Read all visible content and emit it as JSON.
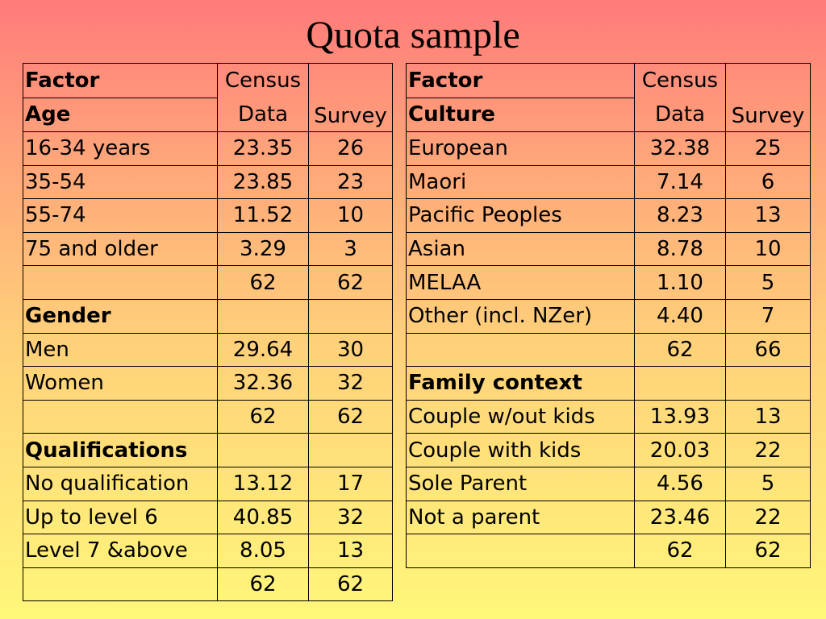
{
  "title": "Quota sample",
  "left_table": {
    "header": {
      "factor": "Factor",
      "section": "Age",
      "census_line1": "Census",
      "census_line2": "Data",
      "survey": "Survey"
    },
    "rows": [
      {
        "label": "16-34 years",
        "census": "23.35",
        "survey": "26",
        "bold": false
      },
      {
        "label": "35-54",
        "census": "23.85",
        "survey": "23",
        "bold": false
      },
      {
        "label": "55-74",
        "census": "11.52",
        "survey": "10",
        "bold": false
      },
      {
        "label": "75 and older",
        "census": "3.29",
        "survey": "3",
        "bold": false
      },
      {
        "label": "",
        "census": "62",
        "survey": "62",
        "bold": false
      },
      {
        "label": "Gender",
        "census": "",
        "survey": "",
        "bold": true
      },
      {
        "label": "Men",
        "census": "29.64",
        "survey": "30",
        "bold": false
      },
      {
        "label": "Women",
        "census": "32.36",
        "survey": "32",
        "bold": false
      },
      {
        "label": "",
        "census": "62",
        "survey": "62",
        "bold": false
      },
      {
        "label": "Qualifications",
        "census": "",
        "survey": "",
        "bold": true
      },
      {
        "label": "No qualification",
        "census": "13.12",
        "survey": "17",
        "bold": false
      },
      {
        "label": "Up to level 6",
        "census": "40.85",
        "survey": "32",
        "bold": false
      },
      {
        "label": "Level 7 &above",
        "census": "8.05",
        "survey": "13",
        "bold": false
      },
      {
        "label": "",
        "census": "62",
        "survey": "62",
        "bold": false
      }
    ]
  },
  "right_table": {
    "header": {
      "factor": "Factor",
      "section": "Culture",
      "census_line1": "Census",
      "census_line2": "Data",
      "survey": "Survey"
    },
    "rows": [
      {
        "label": "European",
        "census": "32.38",
        "survey": "25",
        "bold": false
      },
      {
        "label": "Maori",
        "census": "7.14",
        "survey": "6",
        "bold": false
      },
      {
        "label": "Pacific Peoples",
        "census": "8.23",
        "survey": "13",
        "bold": false
      },
      {
        "label": "Asian",
        "census": "8.78",
        "survey": "10",
        "bold": false
      },
      {
        "label": "MELAA",
        "census": "1.10",
        "survey": "5",
        "bold": false
      },
      {
        "label": "Other (incl. NZer)",
        "census": "4.40",
        "survey": "7",
        "bold": false
      },
      {
        "label": "",
        "census": "62",
        "survey": "66",
        "bold": false
      },
      {
        "label": "Family context",
        "census": "",
        "survey": "",
        "bold": true
      },
      {
        "label": "Couple w/out  kids",
        "census": "13.93",
        "survey": "13",
        "bold": false
      },
      {
        "label": "Couple with kids",
        "census": "20.03",
        "survey": "22",
        "bold": false
      },
      {
        "label": "Sole Parent",
        "census": "4.56",
        "survey": "5",
        "bold": false
      },
      {
        "label": "Not a parent",
        "census": "23.46",
        "survey": "22",
        "bold": false
      },
      {
        "label": "",
        "census": "62",
        "survey": "62",
        "bold": false
      }
    ]
  }
}
